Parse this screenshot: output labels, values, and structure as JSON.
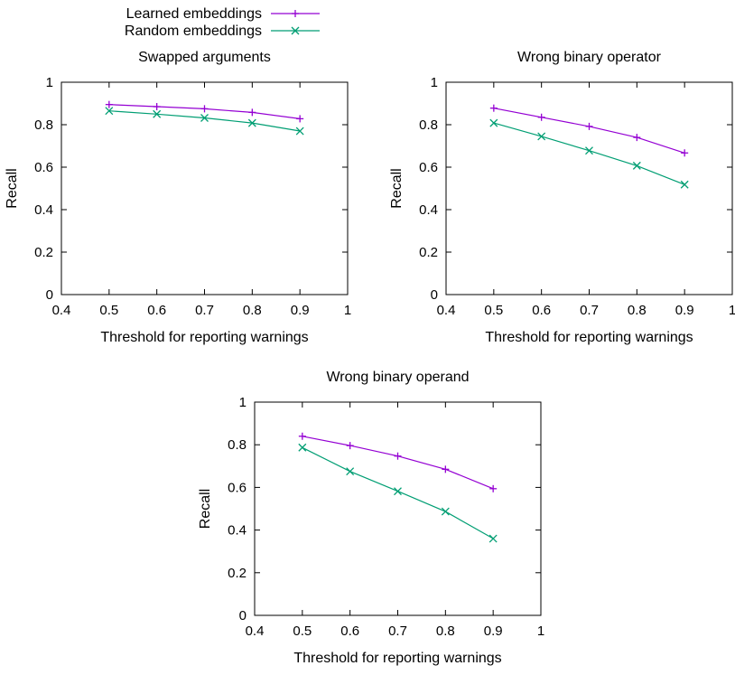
{
  "legend": [
    {
      "name": "Learned embeddings",
      "color": "#9400d3",
      "marker": "plus"
    },
    {
      "name": "Random embeddings",
      "color": "#009e73",
      "marker": "cross"
    }
  ],
  "chart_data": [
    {
      "type": "line",
      "title": "Swapped arguments",
      "xlabel": "Threshold for reporting warnings",
      "ylabel": "Recall",
      "xlim": [
        0.4,
        1
      ],
      "ylim": [
        0,
        1
      ],
      "xticks": [
        "0.4",
        "0.5",
        "0.6",
        "0.7",
        "0.8",
        "0.9",
        "1"
      ],
      "yticks": [
        "0",
        "0.2",
        "0.4",
        "0.6",
        "0.8",
        "1"
      ],
      "x": [
        0.5,
        0.6,
        0.7,
        0.8,
        0.9
      ],
      "series": [
        {
          "name": "Learned embeddings",
          "values": [
            0.895,
            0.885,
            0.875,
            0.858,
            0.828
          ]
        },
        {
          "name": "Random embeddings",
          "values": [
            0.865,
            0.85,
            0.832,
            0.808,
            0.77
          ]
        }
      ],
      "grid": false,
      "legend_position": "top-left, outside"
    },
    {
      "type": "line",
      "title": "Wrong binary operator",
      "xlabel": "Threshold for reporting warnings",
      "ylabel": "Recall",
      "xlim": [
        0.4,
        1
      ],
      "ylim": [
        0,
        1
      ],
      "xticks": [
        "0.4",
        "0.5",
        "0.6",
        "0.7",
        "0.8",
        "0.9",
        "1"
      ],
      "yticks": [
        "0",
        "0.2",
        "0.4",
        "0.6",
        "0.8",
        "1"
      ],
      "x": [
        0.5,
        0.6,
        0.7,
        0.8,
        0.9
      ],
      "series": [
        {
          "name": "Learned embeddings",
          "values": [
            0.878,
            0.835,
            0.792,
            0.74,
            0.667
          ]
        },
        {
          "name": "Random embeddings",
          "values": [
            0.808,
            0.745,
            0.678,
            0.607,
            0.518
          ]
        }
      ],
      "grid": false
    },
    {
      "type": "line",
      "title": "Wrong binary operand",
      "xlabel": "Threshold for reporting warnings",
      "ylabel": "Recall",
      "xlim": [
        0.4,
        1
      ],
      "ylim": [
        0,
        1
      ],
      "xticks": [
        "0.4",
        "0.5",
        "0.6",
        "0.7",
        "0.8",
        "0.9",
        "1"
      ],
      "yticks": [
        "0",
        "0.2",
        "0.4",
        "0.6",
        "0.8",
        "1"
      ],
      "x": [
        0.5,
        0.6,
        0.7,
        0.8,
        0.9
      ],
      "series": [
        {
          "name": "Learned embeddings",
          "values": [
            0.84,
            0.796,
            0.747,
            0.685,
            0.594
          ]
        },
        {
          "name": "Random embeddings",
          "values": [
            0.787,
            0.675,
            0.582,
            0.487,
            0.36
          ]
        }
      ],
      "grid": false
    }
  ]
}
